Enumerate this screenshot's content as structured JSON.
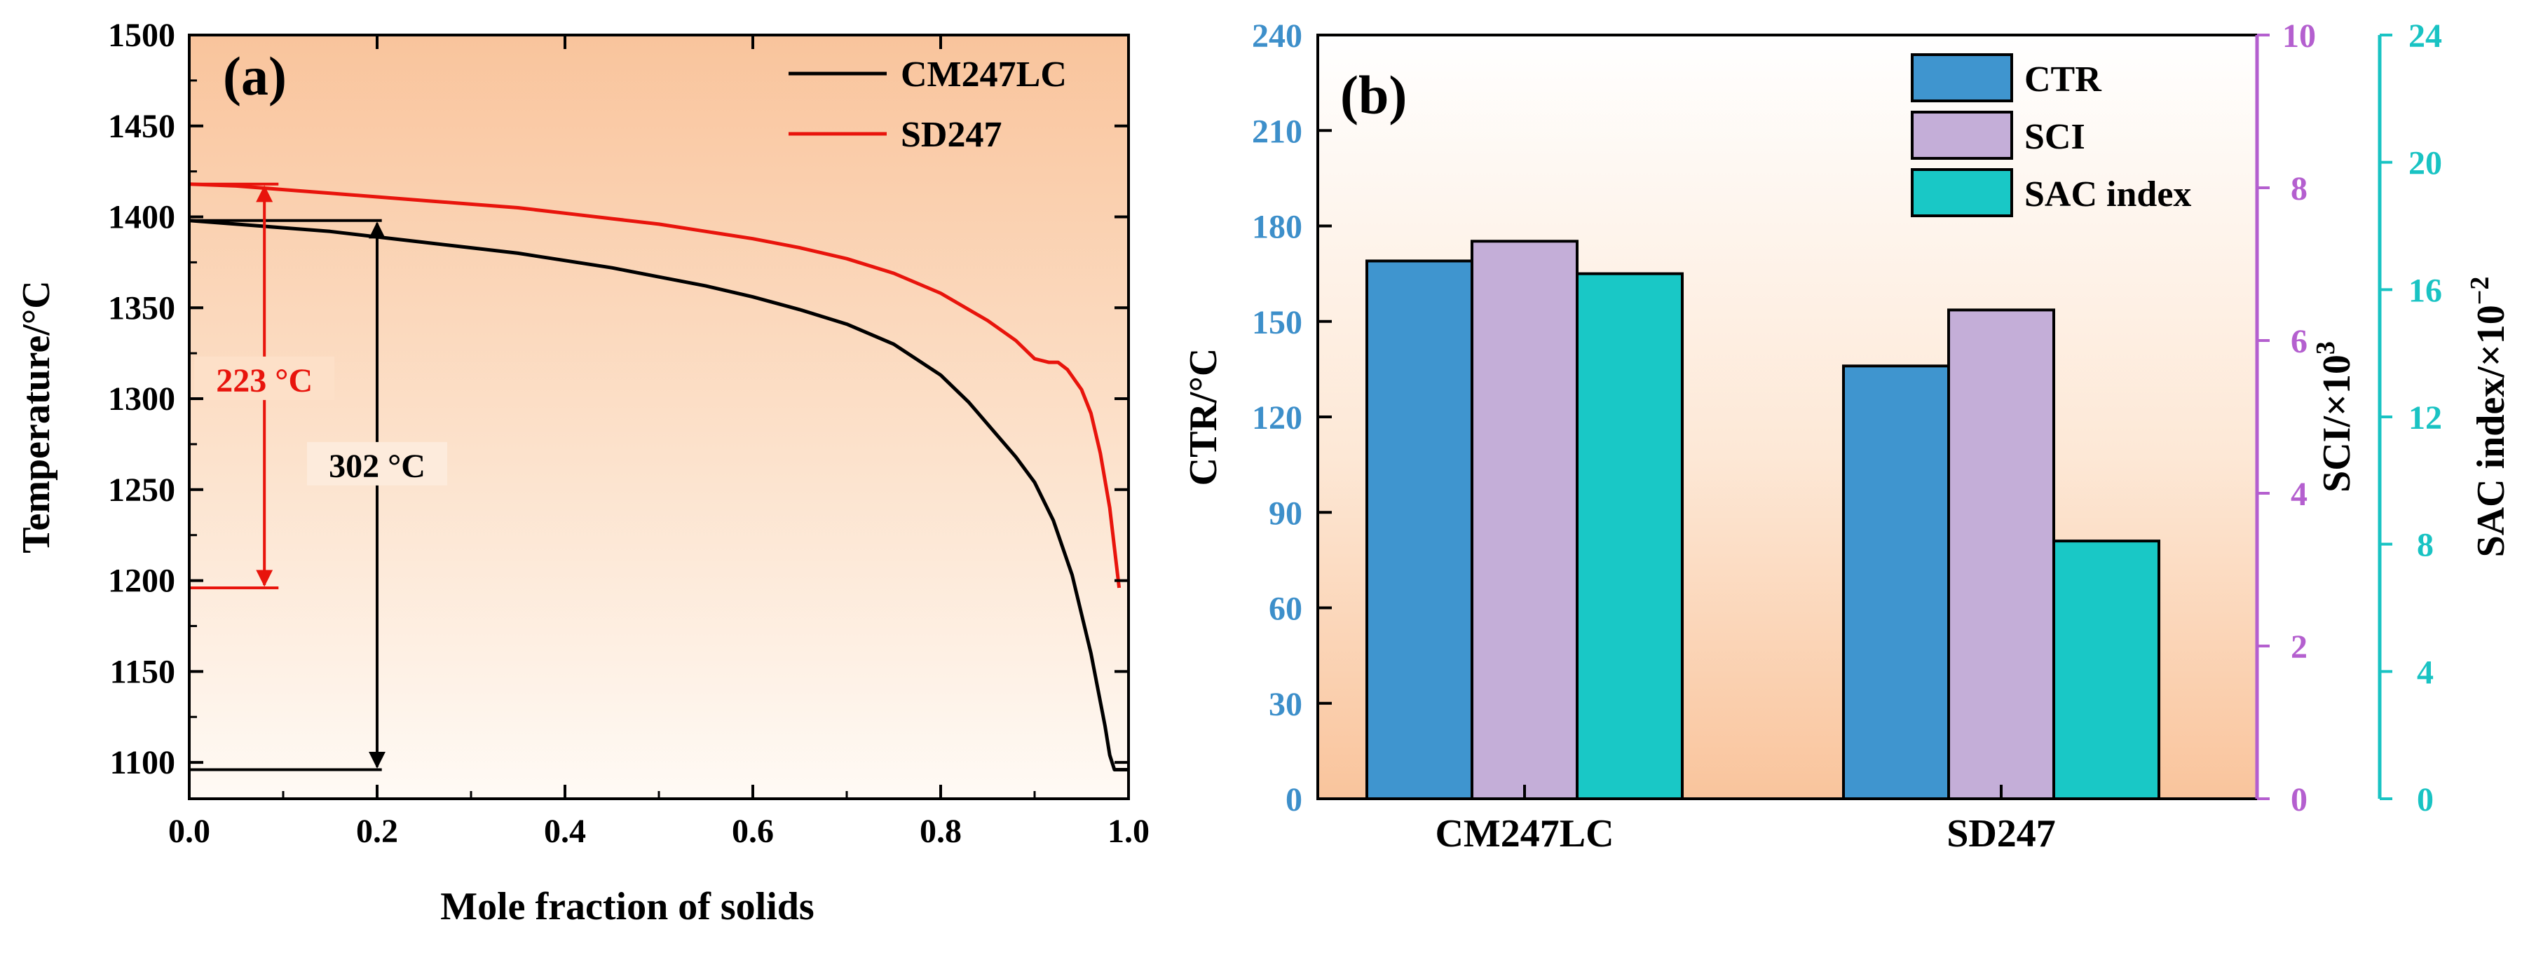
{
  "chart_data": [
    {
      "type": "line",
      "panel_label": "(a)",
      "xlabel": "Mole fraction of solids",
      "ylabel": "Temperature/°C",
      "xlim": [
        0.0,
        1.0
      ],
      "ylim": [
        1080,
        1500
      ],
      "xticks": [
        "0.0",
        "0.2",
        "0.4",
        "0.6",
        "0.8",
        "1.0"
      ],
      "yticks": [
        "1100",
        "1150",
        "1200",
        "1250",
        "1300",
        "1350",
        "1400",
        "1450",
        "1500"
      ],
      "grid": false,
      "legend_position": "top-right",
      "series": [
        {
          "name": "CM247LC",
          "color": "#000000",
          "x": [
            0.0,
            0.05,
            0.1,
            0.15,
            0.2,
            0.25,
            0.3,
            0.35,
            0.4,
            0.45,
            0.5,
            0.55,
            0.6,
            0.65,
            0.7,
            0.75,
            0.8,
            0.83,
            0.86,
            0.88,
            0.9,
            0.92,
            0.94,
            0.96,
            0.975,
            0.98,
            0.985,
            1.0
          ],
          "y": [
            1398,
            1396,
            1394,
            1392,
            1389,
            1386,
            1383,
            1380,
            1376,
            1372,
            1367,
            1362,
            1356,
            1349,
            1341,
            1330,
            1313,
            1298,
            1280,
            1268,
            1254,
            1233,
            1203,
            1160,
            1120,
            1104,
            1096,
            1096
          ]
        },
        {
          "name": "SD247",
          "color": "#e8140c",
          "x": [
            0.0,
            0.05,
            0.1,
            0.15,
            0.2,
            0.25,
            0.3,
            0.35,
            0.4,
            0.45,
            0.5,
            0.55,
            0.6,
            0.65,
            0.7,
            0.75,
            0.8,
            0.85,
            0.88,
            0.9,
            0.915,
            0.925,
            0.935,
            0.95,
            0.96,
            0.97,
            0.98,
            0.99
          ],
          "y": [
            1418,
            1417,
            1415,
            1413,
            1411,
            1409,
            1407,
            1405,
            1402,
            1399,
            1396,
            1392,
            1388,
            1383,
            1377,
            1369,
            1358,
            1343,
            1332,
            1322,
            1320,
            1320,
            1316,
            1305,
            1292,
            1270,
            1240,
            1196
          ]
        }
      ],
      "annotations": [
        {
          "text": "223 °C",
          "color": "#e8140c",
          "x": 0.08,
          "y_from": 1418,
          "y_to": 1196
        },
        {
          "text": "302 °C",
          "color": "#000000",
          "x": 0.2,
          "y_from": 1398,
          "y_to": 1096
        }
      ]
    },
    {
      "type": "bar",
      "panel_label": "(b)",
      "categories": [
        "CM247LC",
        "SD247"
      ],
      "grid": false,
      "legend_position": "top-right",
      "axes": [
        {
          "label": "CTR/°C",
          "side": "left",
          "color": "#3d8fca",
          "range": [
            0,
            240
          ],
          "ticks": [
            "0",
            "30",
            "60",
            "90",
            "120",
            "150",
            "180",
            "210",
            "240"
          ]
        },
        {
          "label": "SCI/×10",
          "label_sup": "3",
          "side": "right",
          "color": "#b45fcf",
          "range": [
            0,
            10
          ],
          "ticks": [
            "0",
            "2",
            "4",
            "6",
            "8",
            "10"
          ]
        },
        {
          "label": "SAC index/×10",
          "label_sup": "−2",
          "side": "right",
          "color": "#19c3c3",
          "range": [
            0,
            24
          ],
          "ticks": [
            "0",
            "4",
            "8",
            "12",
            "16",
            "20",
            "24"
          ]
        }
      ],
      "series": [
        {
          "name": "CTR",
          "axis": 0,
          "color": "#3f95cf",
          "values": [
            169,
            136
          ]
        },
        {
          "name": "SCI",
          "axis": 1,
          "color": "#c4aed8",
          "values": [
            7.3,
            6.4
          ]
        },
        {
          "name": "SAC index",
          "axis": 2,
          "color": "#19c8c6",
          "values": [
            16.5,
            8.1
          ]
        }
      ]
    }
  ]
}
